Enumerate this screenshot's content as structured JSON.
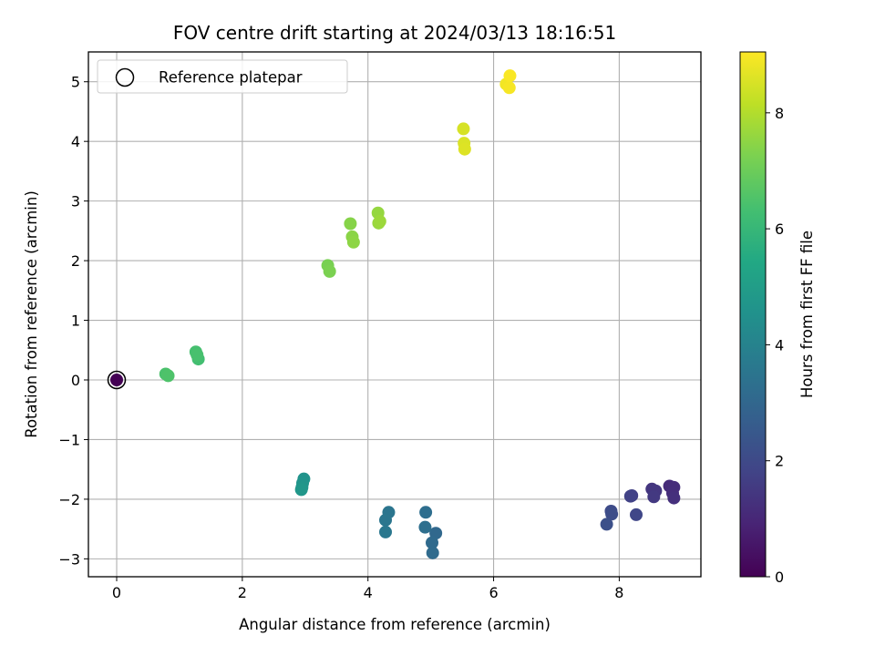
{
  "chart_data": {
    "type": "scatter",
    "title": "FOV centre drift starting at 2024/03/13 18:16:51",
    "xlabel": "Angular distance from reference (arcmin)",
    "ylabel": "Rotation from reference (arcmin)",
    "xlim": [
      -0.45,
      9.3
    ],
    "ylim": [
      -3.3,
      5.5
    ],
    "xticks": [
      0,
      2,
      4,
      6,
      8
    ],
    "yticks": [
      -3,
      -2,
      -1,
      0,
      1,
      2,
      3,
      4,
      5
    ],
    "grid": true,
    "legend": {
      "label": "Reference platepar",
      "placement": "top-left",
      "marker": "open-circle"
    },
    "colorbar": {
      "label": "Hours from first FF file",
      "colormap": "viridis",
      "range": [
        0,
        9.05
      ],
      "ticks": [
        0,
        2,
        4,
        6,
        8
      ]
    },
    "reference_point": {
      "x": 0,
      "y": 0
    },
    "points": [
      {
        "x": 0.0,
        "y": 0.0,
        "c": 0.0
      },
      {
        "x": 8.8,
        "y": -1.78,
        "c": 1.1
      },
      {
        "x": 8.87,
        "y": -1.8,
        "c": 1.15
      },
      {
        "x": 8.85,
        "y": -1.9,
        "c": 1.2
      },
      {
        "x": 8.87,
        "y": -1.98,
        "c": 1.25
      },
      {
        "x": 8.52,
        "y": -1.83,
        "c": 1.4
      },
      {
        "x": 8.58,
        "y": -1.86,
        "c": 1.45
      },
      {
        "x": 8.55,
        "y": -1.96,
        "c": 1.5
      },
      {
        "x": 8.2,
        "y": -1.94,
        "c": 1.7
      },
      {
        "x": 8.18,
        "y": -1.95,
        "c": 1.75
      },
      {
        "x": 8.27,
        "y": -2.26,
        "c": 1.9
      },
      {
        "x": 7.87,
        "y": -2.2,
        "c": 2.05
      },
      {
        "x": 7.88,
        "y": -2.25,
        "c": 2.1
      },
      {
        "x": 7.8,
        "y": -2.42,
        "c": 2.2
      },
      {
        "x": 5.08,
        "y": -2.57,
        "c": 3.05
      },
      {
        "x": 5.02,
        "y": -2.73,
        "c": 3.1
      },
      {
        "x": 5.03,
        "y": -2.9,
        "c": 3.15
      },
      {
        "x": 4.92,
        "y": -2.22,
        "c": 3.25
      },
      {
        "x": 4.91,
        "y": -2.47,
        "c": 3.3
      },
      {
        "x": 4.33,
        "y": -2.22,
        "c": 3.5
      },
      {
        "x": 4.28,
        "y": -2.35,
        "c": 3.55
      },
      {
        "x": 4.28,
        "y": -2.55,
        "c": 3.6
      },
      {
        "x": 2.98,
        "y": -1.66,
        "c": 4.6
      },
      {
        "x": 2.96,
        "y": -1.73,
        "c": 4.65
      },
      {
        "x": 2.95,
        "y": -1.8,
        "c": 4.7
      },
      {
        "x": 2.94,
        "y": -1.84,
        "c": 4.75
      },
      {
        "x": 1.3,
        "y": 0.35,
        "c": 6.3
      },
      {
        "x": 1.26,
        "y": 0.47,
        "c": 6.35
      },
      {
        "x": 1.28,
        "y": 0.42,
        "c": 6.4
      },
      {
        "x": 0.78,
        "y": 0.1,
        "c": 6.45
      },
      {
        "x": 0.82,
        "y": 0.07,
        "c": 6.5
      },
      {
        "x": 3.36,
        "y": 1.92,
        "c": 7.2
      },
      {
        "x": 3.39,
        "y": 1.82,
        "c": 7.25
      },
      {
        "x": 3.72,
        "y": 2.62,
        "c": 7.4
      },
      {
        "x": 3.75,
        "y": 2.4,
        "c": 7.45
      },
      {
        "x": 3.77,
        "y": 2.31,
        "c": 7.5
      },
      {
        "x": 4.16,
        "y": 2.8,
        "c": 7.6
      },
      {
        "x": 4.17,
        "y": 2.63,
        "c": 7.65
      },
      {
        "x": 4.19,
        "y": 2.66,
        "c": 7.7
      },
      {
        "x": 5.52,
        "y": 4.21,
        "c": 8.5
      },
      {
        "x": 5.53,
        "y": 3.97,
        "c": 8.55
      },
      {
        "x": 5.54,
        "y": 3.87,
        "c": 8.6
      },
      {
        "x": 6.2,
        "y": 4.96,
        "c": 8.9
      },
      {
        "x": 6.25,
        "y": 4.9,
        "c": 8.95
      },
      {
        "x": 6.26,
        "y": 5.1,
        "c": 9.0
      }
    ]
  }
}
